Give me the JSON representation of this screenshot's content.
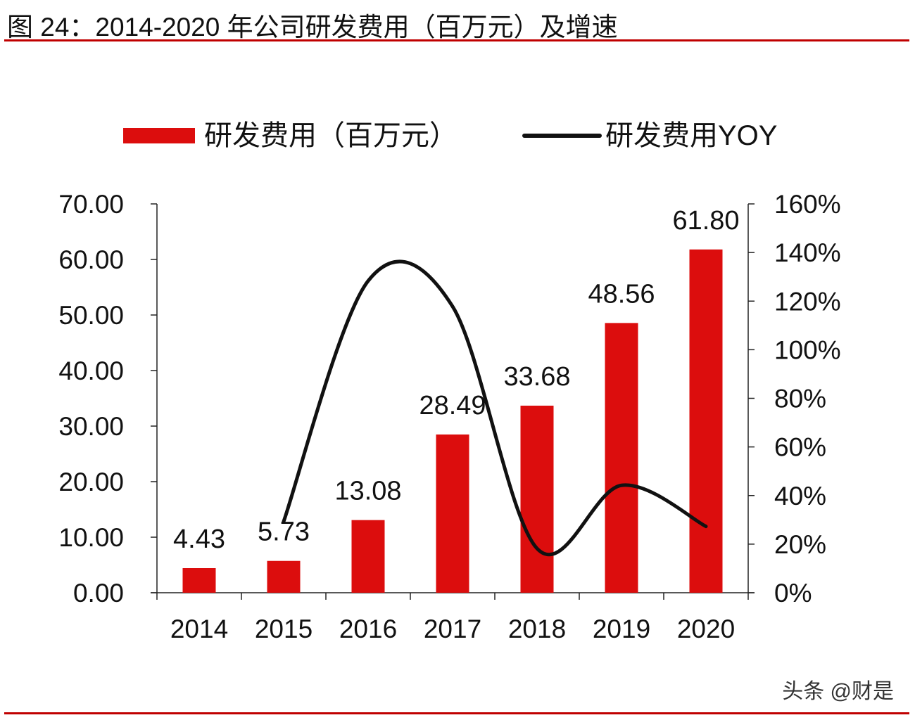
{
  "figure": {
    "title": "图 24：2014-2020 年公司研发费用（百万元）及增速",
    "watermark": "头条 @财是"
  },
  "chart_data": {
    "type": "bar",
    "title": "图 24：2014-2020 年公司研发费用（百万元）及增速",
    "categories": [
      "2014",
      "2015",
      "2016",
      "2017",
      "2018",
      "2019",
      "2020"
    ],
    "series": [
      {
        "name": "研发费用（百万元）",
        "type": "bar",
        "axis": "left",
        "color": "#dc0d0d",
        "values": [
          4.43,
          5.73,
          13.08,
          28.49,
          33.68,
          48.56,
          61.8
        ],
        "labels": [
          "4.43",
          "5.73",
          "13.08",
          "28.49",
          "33.68",
          "48.56",
          "61.80"
        ]
      },
      {
        "name": "研发费用YOY",
        "type": "line",
        "axis": "right",
        "color": "#111111",
        "values": [
          null,
          0.293,
          1.283,
          1.178,
          0.182,
          0.442,
          0.273
        ]
      }
    ],
    "y_left": {
      "min": 0,
      "max": 70,
      "ticks": [
        0,
        10,
        20,
        30,
        40,
        50,
        60,
        70
      ],
      "tick_labels": [
        "0.00",
        "10.00",
        "20.00",
        "30.00",
        "40.00",
        "50.00",
        "60.00",
        "70.00"
      ]
    },
    "y_right": {
      "min": 0,
      "max": 1.6,
      "ticks": [
        0,
        0.2,
        0.4,
        0.6,
        0.8,
        1.0,
        1.2,
        1.4,
        1.6
      ],
      "tick_labels": [
        "0%",
        "20%",
        "40%",
        "60%",
        "80%",
        "100%",
        "120%",
        "140%",
        "160%"
      ]
    },
    "legend_position": "top",
    "grid": false
  }
}
